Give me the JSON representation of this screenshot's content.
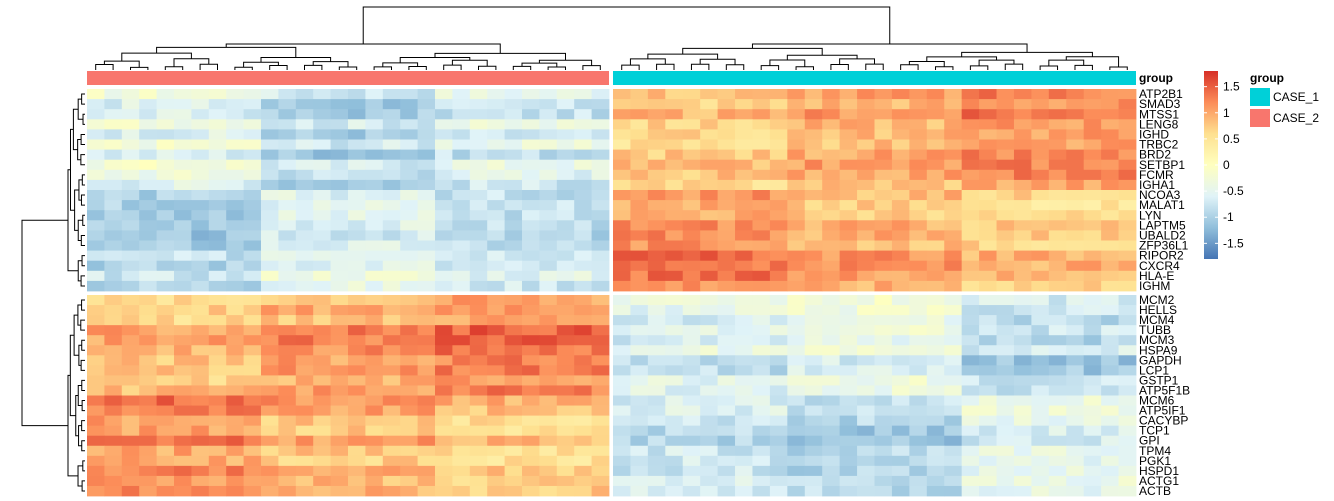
{
  "chart_data": {
    "type": "heatmap",
    "title": "",
    "annotation_title": "group",
    "groups": [
      {
        "name": "CASE_2",
        "color": "#F8766D"
      },
      {
        "name": "CASE_1",
        "color": "#00D0D8"
      }
    ],
    "legend": {
      "title": "group",
      "items": [
        {
          "name": "CASE_1",
          "color": "#00D0D8"
        },
        {
          "name": "CASE_2",
          "color": "#F8766D"
        }
      ]
    },
    "color_scale": {
      "min": -1.8,
      "max": 1.8,
      "ticks": [
        {
          "value": 1.5,
          "label": "1.5"
        },
        {
          "value": 1,
          "label": "1"
        },
        {
          "value": 0.5,
          "label": "0.5"
        },
        {
          "value": 0,
          "label": "0"
        },
        {
          "value": -0.5,
          "label": "-0.5"
        },
        {
          "value": -1,
          "label": "-1"
        },
        {
          "value": -1.5,
          "label": "-1.5"
        }
      ],
      "colors": [
        "#4575B4",
        "#91BFDB",
        "#E0F3F8",
        "#FFFFBF",
        "#FEE090",
        "#FC8D59",
        "#D73027"
      ]
    },
    "column_blocks": [
      {
        "group": "CASE_2",
        "n_samples": 30
      },
      {
        "group": "CASE_1",
        "n_samples": 30
      }
    ],
    "row_clusters": [
      {
        "genes": [
          "ATP2B1",
          "SMAD3",
          "MTSS1",
          "LENG8",
          "IGHD",
          "TRBC2",
          "BRD2",
          "SETBP1",
          "FCMR",
          "IGHA1",
          "NCOA3",
          "MALAT1",
          "LYN",
          "LAPTM5",
          "UBALD2",
          "ZFP36L1",
          "RIPOR2",
          "CXCR4",
          "HLA-E",
          "IGHM"
        ],
        "mean_by_group": [
          -0.7,
          1.0
        ]
      },
      {
        "genes": [
          "MCM2",
          "HELLS",
          "MCM4",
          "TUBB",
          "MCM3",
          "HSPA9",
          "GAPDH",
          "LCP1",
          "GSTP1",
          "ATP5F1B",
          "MCM6",
          "ATP5IF1",
          "CACYBP",
          "TCP1",
          "GPI",
          "TPM4",
          "PGK1",
          "HSPD1",
          "ACTG1",
          "ACTB"
        ],
        "mean_by_group": [
          1.0,
          -0.7
        ]
      }
    ]
  }
}
